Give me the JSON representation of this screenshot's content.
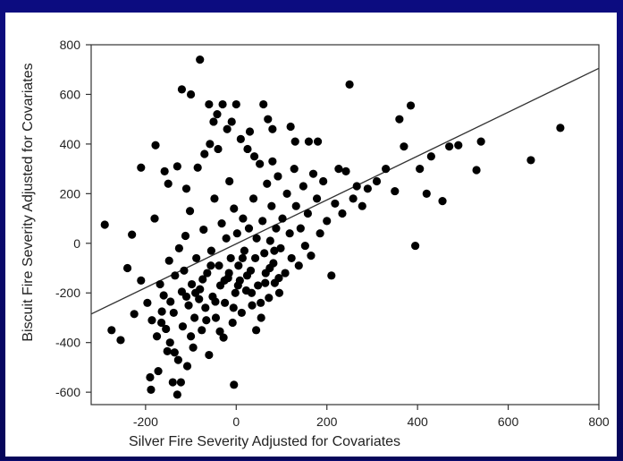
{
  "chart_data": {
    "type": "scatter",
    "title": "",
    "xlabel": "Silver Fire Severity Adjusted for Covariates",
    "ylabel": "Biscuit Fire Severity Adjusted for Covariates",
    "xlim": [
      -320,
      800
    ],
    "ylim": [
      -650,
      800
    ],
    "xticks": [
      -200,
      0,
      200,
      400,
      600,
      800
    ],
    "yticks": [
      -600,
      -400,
      -200,
      0,
      200,
      400,
      600,
      800
    ],
    "xtick_labels": [
      "-200",
      "0",
      "200",
      "400",
      "600",
      "800"
    ],
    "ytick_labels": [
      "-600",
      "-400",
      "-200",
      "0",
      "200",
      "400",
      "600",
      "800"
    ],
    "grid": false,
    "point_color": "#000000",
    "line_color": "#333333",
    "regression_line": {
      "x": [
        -320,
        800
      ],
      "y": [
        -285,
        705
      ]
    },
    "points": [
      [
        -290,
        75
      ],
      [
        -275,
        -350
      ],
      [
        -255,
        -390
      ],
      [
        -240,
        -100
      ],
      [
        -230,
        35
      ],
      [
        -225,
        -285
      ],
      [
        -210,
        305
      ],
      [
        -190,
        -540
      ],
      [
        -188,
        -590
      ],
      [
        -180,
        100
      ],
      [
        -178,
        395
      ],
      [
        -172,
        -515
      ],
      [
        -168,
        -165
      ],
      [
        -165,
        -320
      ],
      [
        -160,
        -210
      ],
      [
        -158,
        290
      ],
      [
        -152,
        -435
      ],
      [
        -148,
        -70
      ],
      [
        -145,
        -235
      ],
      [
        -140,
        -560
      ],
      [
        -138,
        -280
      ],
      [
        -135,
        -130
      ],
      [
        -130,
        -610
      ],
      [
        -126,
        -20
      ],
      [
        -122,
        -560
      ],
      [
        -118,
        -335
      ],
      [
        -115,
        -110
      ],
      [
        -112,
        30
      ],
      [
        -108,
        -495
      ],
      [
        -105,
        -250
      ],
      [
        -102,
        130
      ],
      [
        -98,
        -165
      ],
      [
        -95,
        -420
      ],
      [
        -92,
        -300
      ],
      [
        -88,
        -60
      ],
      [
        -85,
        305
      ],
      [
        -80,
        -185
      ],
      [
        -76,
        -350
      ],
      [
        -72,
        55
      ],
      [
        -68,
        -260
      ],
      [
        -64,
        -120
      ],
      [
        -60,
        -450
      ],
      [
        -58,
        400
      ],
      [
        -55,
        -30
      ],
      [
        -52,
        -215
      ],
      [
        -48,
        180
      ],
      [
        -45,
        -300
      ],
      [
        -42,
        520
      ],
      [
        -38,
        -90
      ],
      [
        -35,
        -170
      ],
      [
        -32,
        80
      ],
      [
        -28,
        -380
      ],
      [
        -25,
        -240
      ],
      [
        -22,
        20
      ],
      [
        -18,
        -140
      ],
      [
        -15,
        250
      ],
      [
        -12,
        -60
      ],
      [
        -8,
        -320
      ],
      [
        -5,
        140
      ],
      [
        -2,
        -200
      ],
      [
        2,
        40
      ],
      [
        5,
        -90
      ],
      [
        8,
        -150
      ],
      [
        12,
        -280
      ],
      [
        15,
        100
      ],
      [
        18,
        -30
      ],
      [
        22,
        -190
      ],
      [
        25,
        380
      ],
      [
        28,
        60
      ],
      [
        32,
        -110
      ],
      [
        35,
        -250
      ],
      [
        38,
        180
      ],
      [
        42,
        -60
      ],
      [
        45,
        20
      ],
      [
        48,
        -170
      ],
      [
        52,
        320
      ],
      [
        55,
        -300
      ],
      [
        58,
        90
      ],
      [
        62,
        -40
      ],
      [
        65,
        -120
      ],
      [
        68,
        240
      ],
      [
        72,
        -220
      ],
      [
        75,
        10
      ],
      [
        78,
        150
      ],
      [
        82,
        -80
      ],
      [
        85,
        -160
      ],
      [
        88,
        60
      ],
      [
        92,
        270
      ],
      [
        95,
        -200
      ],
      [
        98,
        -20
      ],
      [
        102,
        100
      ],
      [
        108,
        -120
      ],
      [
        112,
        200
      ],
      [
        118,
        40
      ],
      [
        122,
        -60
      ],
      [
        128,
        300
      ],
      [
        132,
        150
      ],
      [
        138,
        -90
      ],
      [
        142,
        60
      ],
      [
        148,
        230
      ],
      [
        152,
        -10
      ],
      [
        158,
        120
      ],
      [
        165,
        -50
      ],
      [
        170,
        280
      ],
      [
        178,
        180
      ],
      [
        185,
        40
      ],
      [
        192,
        250
      ],
      [
        200,
        90
      ],
      [
        210,
        -130
      ],
      [
        218,
        160
      ],
      [
        226,
        300
      ],
      [
        234,
        120
      ],
      [
        242,
        290
      ],
      [
        250,
        640
      ],
      [
        258,
        180
      ],
      [
        266,
        230
      ],
      [
        278,
        150
      ],
      [
        290,
        220
      ],
      [
        310,
        250
      ],
      [
        330,
        300
      ],
      [
        350,
        210
      ],
      [
        360,
        500
      ],
      [
        370,
        390
      ],
      [
        385,
        555
      ],
      [
        395,
        -10
      ],
      [
        405,
        300
      ],
      [
        420,
        200
      ],
      [
        430,
        350
      ],
      [
        455,
        170
      ],
      [
        470,
        390
      ],
      [
        490,
        395
      ],
      [
        530,
        295
      ],
      [
        540,
        410
      ],
      [
        650,
        335
      ],
      [
        715,
        465
      ],
      [
        -210,
        -150
      ],
      [
        -196,
        -240
      ],
      [
        -186,
        -310
      ],
      [
        -175,
        -375
      ],
      [
        -164,
        -275
      ],
      [
        -155,
        -345
      ],
      [
        -146,
        -400
      ],
      [
        -136,
        -440
      ],
      [
        -128,
        -470
      ],
      [
        -120,
        -195
      ],
      [
        -110,
        -215
      ],
      [
        -100,
        -375
      ],
      [
        -90,
        -200
      ],
      [
        -82,
        -225
      ],
      [
        -74,
        -145
      ],
      [
        -66,
        -310
      ],
      [
        -56,
        -90
      ],
      [
        -46,
        -235
      ],
      [
        -36,
        -355
      ],
      [
        -26,
        -150
      ],
      [
        -16,
        -120
      ],
      [
        -6,
        -260
      ],
      [
        4,
        -170
      ],
      [
        14,
        -60
      ],
      [
        24,
        -130
      ],
      [
        34,
        -200
      ],
      [
        44,
        -350
      ],
      [
        54,
        -240
      ],
      [
        64,
        -160
      ],
      [
        74,
        -100
      ],
      [
        84,
        -30
      ],
      [
        94,
        -140
      ],
      [
        -120,
        620
      ],
      [
        -100,
        600
      ],
      [
        -80,
        740
      ],
      [
        -60,
        560
      ],
      [
        -30,
        560
      ],
      [
        0,
        560
      ],
      [
        60,
        560
      ],
      [
        -50,
        490
      ],
      [
        -10,
        490
      ],
      [
        30,
        450
      ],
      [
        70,
        500
      ],
      [
        80,
        460
      ],
      [
        120,
        470
      ],
      [
        130,
        410
      ],
      [
        160,
        410
      ],
      [
        180,
        410
      ],
      [
        -150,
        240
      ],
      [
        -130,
        310
      ],
      [
        -110,
        220
      ],
      [
        -70,
        360
      ],
      [
        -40,
        380
      ],
      [
        -20,
        460
      ],
      [
        10,
        420
      ],
      [
        40,
        350
      ],
      [
        80,
        330
      ],
      [
        -5,
        -570
      ]
    ]
  }
}
